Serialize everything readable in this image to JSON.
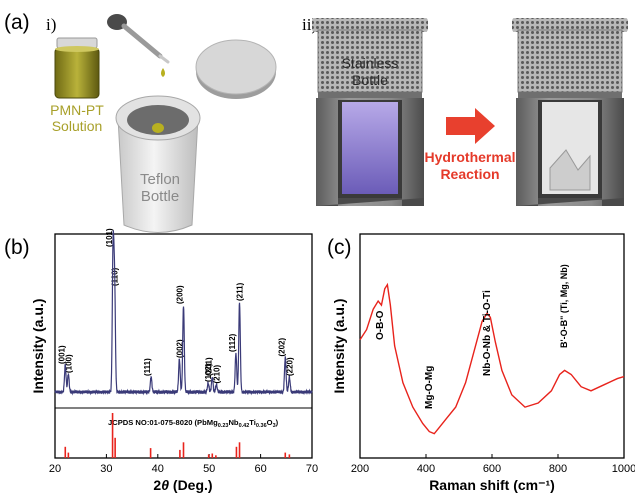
{
  "panel_a": {
    "label": "(a)",
    "step1": "i)",
    "step2": "ii)",
    "solution_line1": "PMN-PT",
    "solution_line2": "Solution",
    "teflon_line1": "Teflon",
    "teflon_line2": "Bottle",
    "stainless_line1": "Stainless",
    "stainless_line2": "Bottle",
    "reaction_line1": "Hydrothermal",
    "reaction_line2": "Reaction",
    "colors": {
      "solution": "#a8a02a",
      "arrow": "#e8402e",
      "reaction_text": "#e53a2a"
    }
  },
  "chart_data": [
    {
      "type": "line",
      "panel_label": "(b)",
      "xlabel": "2θ (Deg.)",
      "ylabel": "Intensity (a.u.)",
      "xlim": [
        20,
        70
      ],
      "xticks": [
        "20",
        "30",
        "40",
        "50",
        "60",
        "70"
      ],
      "reference_label": "JCPDS NO:01-075-8020 (PbMg0.23Nb0.42Ti0.36O3)",
      "series": [
        {
          "color": "#3a3a78",
          "peaks": [
            {
              "x": 22.0,
              "h": 0.18,
              "label": "(001)"
            },
            {
              "x": 22.6,
              "h": 0.12,
              "label": "(100)"
            },
            {
              "x": 31.3,
              "h": 0.96,
              "label": "(101)"
            },
            {
              "x": 31.6,
              "h": 0.7,
              "label": "(110)"
            },
            {
              "x": 38.7,
              "h": 0.1,
              "label": "(111)"
            },
            {
              "x": 44.2,
              "h": 0.22,
              "label": "(002)"
            },
            {
              "x": 45.0,
              "h": 0.58,
              "label": "(200)"
            },
            {
              "x": 49.8,
              "h": 0.06,
              "label": "(102)"
            },
            {
              "x": 50.6,
              "h": 0.1,
              "label": "(201)"
            },
            {
              "x": 51.4,
              "h": 0.05,
              "label": "(210)"
            },
            {
              "x": 55.2,
              "h": 0.26,
              "label": "(112)"
            },
            {
              "x": 55.9,
              "h": 0.6,
              "label": "(211)"
            },
            {
              "x": 64.8,
              "h": 0.23,
              "label": "(202)"
            },
            {
              "x": 65.6,
              "h": 0.1,
              "label": "(220)"
            }
          ]
        }
      ],
      "reference_peaks": [
        {
          "x": 22.0,
          "h": 0.25
        },
        {
          "x": 22.6,
          "h": 0.12
        },
        {
          "x": 31.2,
          "h": 1.0
        },
        {
          "x": 31.7,
          "h": 0.45
        },
        {
          "x": 38.6,
          "h": 0.22
        },
        {
          "x": 44.3,
          "h": 0.18
        },
        {
          "x": 45.0,
          "h": 0.35
        },
        {
          "x": 49.9,
          "h": 0.08
        },
        {
          "x": 50.6,
          "h": 0.1
        },
        {
          "x": 51.3,
          "h": 0.06
        },
        {
          "x": 55.3,
          "h": 0.25
        },
        {
          "x": 55.9,
          "h": 0.35
        },
        {
          "x": 64.8,
          "h": 0.12
        },
        {
          "x": 65.6,
          "h": 0.08
        }
      ]
    },
    {
      "type": "line",
      "panel_label": "(c)",
      "xlabel": "Raman shift (cm⁻¹)",
      "ylabel": "Intensity (a.u.)",
      "xlim": [
        200,
        1000
      ],
      "xticks": [
        "200",
        "400",
        "600",
        "800",
        "1000"
      ],
      "annotations": [
        "O-B-O",
        "Mg-O-Mg",
        "Nb-O-Nb & Ti-O-Ti",
        "B'-O-B\" (Ti, Mg, Nb)"
      ],
      "series": [
        {
          "color": "#e8231c",
          "points": [
            [
              200,
              0.55
            ],
            [
              220,
              0.6
            ],
            [
              240,
              0.7
            ],
            [
              255,
              0.74
            ],
            [
              265,
              0.72
            ],
            [
              275,
              0.8
            ],
            [
              283,
              0.82
            ],
            [
              292,
              0.72
            ],
            [
              305,
              0.52
            ],
            [
              330,
              0.34
            ],
            [
              360,
              0.22
            ],
            [
              390,
              0.14
            ],
            [
              410,
              0.1
            ],
            [
              425,
              0.09
            ],
            [
              440,
              0.12
            ],
            [
              460,
              0.16
            ],
            [
              490,
              0.22
            ],
            [
              520,
              0.34
            ],
            [
              550,
              0.52
            ],
            [
              570,
              0.64
            ],
            [
              585,
              0.68
            ],
            [
              595,
              0.66
            ],
            [
              610,
              0.54
            ],
            [
              630,
              0.4
            ],
            [
              660,
              0.28
            ],
            [
              700,
              0.22
            ],
            [
              740,
              0.24
            ],
            [
              780,
              0.3
            ],
            [
              805,
              0.38
            ],
            [
              820,
              0.4
            ],
            [
              840,
              0.38
            ],
            [
              870,
              0.32
            ],
            [
              900,
              0.3
            ],
            [
              940,
              0.33
            ],
            [
              980,
              0.36
            ],
            [
              1000,
              0.37
            ]
          ]
        }
      ]
    }
  ]
}
